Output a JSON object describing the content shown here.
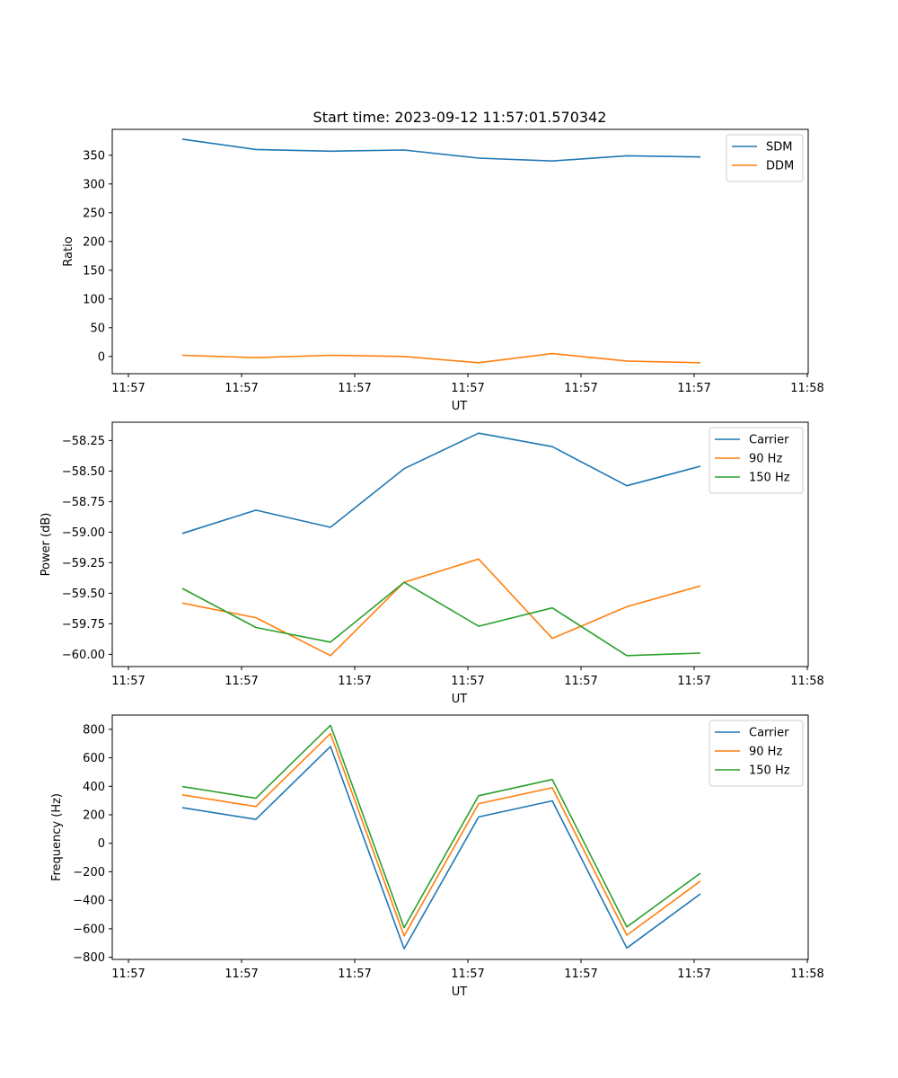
{
  "chart_data": [
    {
      "type": "line",
      "title": "Start time: 2023-09-12 11:57:01.570342",
      "xlabel": "UT",
      "ylabel": "Ratio",
      "xticks": [
        "11:57",
        "11:57",
        "11:57",
        "11:57",
        "11:57",
        "11:57",
        "11:58"
      ],
      "yticks": [
        0,
        50,
        100,
        150,
        200,
        250,
        300,
        350
      ],
      "ylim": [
        -30,
        395
      ],
      "legend": "top-right",
      "series": [
        {
          "name": "SDM",
          "color": "#1f77b4",
          "values": [
            378,
            360,
            357,
            359,
            345,
            340,
            349,
            347
          ]
        },
        {
          "name": "DDM",
          "color": "#ff7f0e",
          "values": [
            2,
            -2,
            2,
            0,
            -11,
            5,
            -8,
            -11
          ]
        }
      ]
    },
    {
      "type": "line",
      "title": "",
      "xlabel": "UT",
      "ylabel": "Power (dB)",
      "xticks": [
        "11:57",
        "11:57",
        "11:57",
        "11:57",
        "11:57",
        "11:57",
        "11:58"
      ],
      "yticks": [
        "−60.00",
        "−59.75",
        "−59.50",
        "−59.25",
        "−59.00",
        "−58.75",
        "−58.50",
        "−58.25"
      ],
      "ytick_values": [
        -60.0,
        -59.75,
        -59.5,
        -59.25,
        -59.0,
        -58.75,
        -58.5,
        -58.25
      ],
      "ylim": [
        -60.1,
        -58.1
      ],
      "legend": "top-right",
      "series": [
        {
          "name": "Carrier",
          "color": "#1f77b4",
          "values": [
            -59.01,
            -58.82,
            -58.96,
            -58.48,
            -58.19,
            -58.3,
            -58.62,
            -58.46
          ]
        },
        {
          "name": "90 Hz",
          "color": "#ff7f0e",
          "values": [
            -59.58,
            -59.7,
            -60.01,
            -59.41,
            -59.22,
            -59.87,
            -59.61,
            -59.44
          ]
        },
        {
          "name": "150 Hz",
          "color": "#2ca02c",
          "values": [
            -59.46,
            -59.78,
            -59.9,
            -59.41,
            -59.77,
            -59.62,
            -60.01,
            -59.99
          ]
        }
      ]
    },
    {
      "type": "line",
      "title": "",
      "xlabel": "UT",
      "ylabel": "Frequency (Hz)",
      "xticks": [
        "11:57",
        "11:57",
        "11:57",
        "11:57",
        "11:57",
        "11:57",
        "11:58"
      ],
      "yticks": [
        "−800",
        "−600",
        "−400",
        "−200",
        "0",
        "200",
        "400",
        "600",
        "800"
      ],
      "ytick_values": [
        -800,
        -600,
        -400,
        -200,
        0,
        200,
        400,
        600,
        800
      ],
      "ylim": [
        -815,
        900
      ],
      "legend": "top-right",
      "series": [
        {
          "name": "Carrier",
          "color": "#1f77b4",
          "values": [
            250,
            168,
            680,
            -740,
            185,
            298,
            -735,
            -355
          ]
        },
        {
          "name": "90 Hz",
          "color": "#ff7f0e",
          "values": [
            340,
            258,
            770,
            -650,
            278,
            390,
            -645,
            -265
          ]
        },
        {
          "name": "150 Hz",
          "color": "#2ca02c",
          "values": [
            398,
            316,
            828,
            -592,
            334,
            448,
            -587,
            -210
          ]
        }
      ]
    }
  ]
}
